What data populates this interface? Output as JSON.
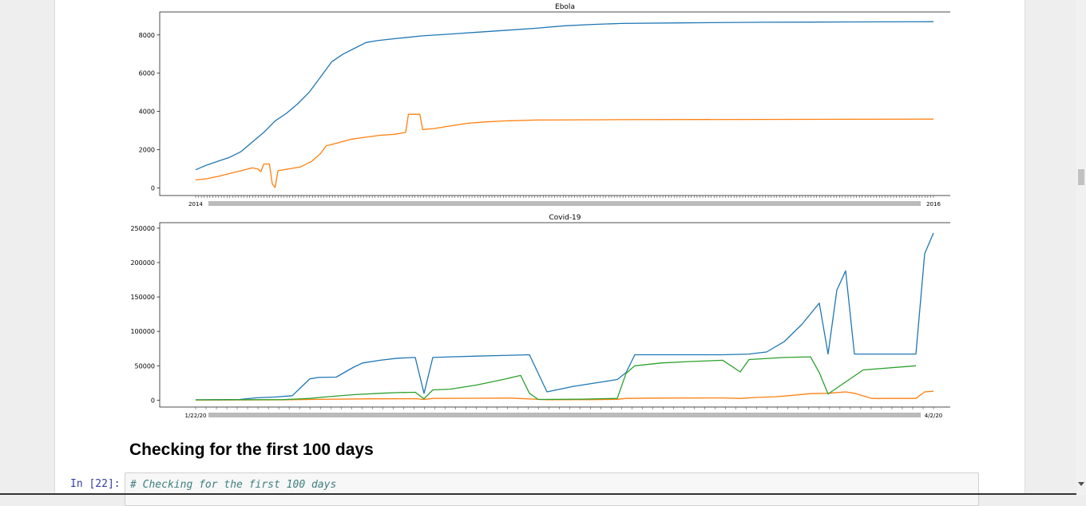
{
  "heading": "Checking for the first 100 days",
  "cell": {
    "prompt": "In [22]:",
    "code": "# Checking for the first 100 days"
  },
  "colors": {
    "series1": "#1f77b4",
    "series2": "#ff7f0e",
    "series3": "#2ca02c"
  },
  "chart_data": [
    {
      "type": "line",
      "title": "Ebola",
      "xlabel": "",
      "ylabel": "",
      "ylim": [
        -400,
        9200
      ],
      "yticks": [
        0,
        2000,
        4000,
        6000,
        8000
      ],
      "xtick_labels": [
        "2014",
        "2016"
      ],
      "grid": false,
      "x_count": 260,
      "series": [
        {
          "points": [
            [
              0,
              950
            ],
            [
              4,
              1200
            ],
            [
              8,
              1400
            ],
            [
              12,
              1600
            ],
            [
              16,
              1900
            ],
            [
              20,
              2400
            ],
            [
              24,
              2900
            ],
            [
              28,
              3500
            ],
            [
              32,
              3900
            ],
            [
              36,
              4400
            ],
            [
              40,
              5000
            ],
            [
              44,
              5800
            ],
            [
              48,
              6600
            ],
            [
              52,
              7000
            ],
            [
              56,
              7300
            ],
            [
              60,
              7600
            ],
            [
              64,
              7700
            ],
            [
              70,
              7800
            ],
            [
              80,
              7950
            ],
            [
              90,
              8050
            ],
            [
              100,
              8150
            ],
            [
              110,
              8250
            ],
            [
              120,
              8350
            ],
            [
              130,
              8480
            ],
            [
              140,
              8550
            ],
            [
              150,
              8600
            ],
            [
              170,
              8630
            ],
            [
              200,
              8660
            ],
            [
              230,
              8680
            ],
            [
              260,
              8690
            ]
          ]
        },
        {
          "points": [
            [
              0,
              420
            ],
            [
              4,
              480
            ],
            [
              8,
              600
            ],
            [
              12,
              750
            ],
            [
              16,
              900
            ],
            [
              20,
              1050
            ],
            [
              22,
              980
            ],
            [
              23,
              850
            ],
            [
              24,
              1250
            ],
            [
              26,
              1250
            ],
            [
              27,
              200
            ],
            [
              28,
              20
            ],
            [
              29,
              900
            ],
            [
              33,
              1000
            ],
            [
              37,
              1100
            ],
            [
              41,
              1400
            ],
            [
              44,
              1800
            ],
            [
              46,
              2200
            ],
            [
              50,
              2350
            ],
            [
              55,
              2550
            ],
            [
              60,
              2650
            ],
            [
              65,
              2750
            ],
            [
              70,
              2800
            ],
            [
              74,
              2900
            ],
            [
              75,
              3850
            ],
            [
              79,
              3850
            ],
            [
              80,
              3050
            ],
            [
              84,
              3100
            ],
            [
              90,
              3250
            ],
            [
              96,
              3380
            ],
            [
              102,
              3450
            ],
            [
              108,
              3500
            ],
            [
              120,
              3550
            ],
            [
              150,
              3570
            ],
            [
              200,
              3580
            ],
            [
              260,
              3600
            ]
          ]
        }
      ]
    },
    {
      "type": "line",
      "title": "Covid-19",
      "xlabel": "",
      "ylabel": "",
      "ylim": [
        -10000,
        258000
      ],
      "yticks": [
        0,
        50000,
        100000,
        150000,
        200000,
        250000
      ],
      "xtick_labels": [
        "1/22/20",
        "4/2/20"
      ],
      "grid": false,
      "x_count": 72,
      "series": [
        {
          "points": [
            [
              0,
              500
            ],
            [
              2,
              700
            ],
            [
              5,
              1000
            ],
            [
              7,
              3500
            ],
            [
              9,
              4500
            ],
            [
              11,
              6500
            ],
            [
              13,
              31000
            ],
            [
              14,
              33000
            ],
            [
              16,
              33500
            ],
            [
              18,
              48000
            ],
            [
              19,
              54000
            ],
            [
              21,
              58000
            ],
            [
              23,
              61000
            ],
            [
              25,
              62000
            ],
            [
              26,
              10000
            ],
            [
              27,
              62000
            ],
            [
              29,
              63000
            ],
            [
              32,
              64000
            ],
            [
              35,
              65000
            ],
            [
              38,
              66000
            ],
            [
              40,
              12000
            ],
            [
              43,
              20000
            ],
            [
              46,
              26000
            ],
            [
              48,
              30000
            ],
            [
              49,
              40000
            ],
            [
              50,
              66000
            ],
            [
              55,
              66000
            ],
            [
              58,
              66000
            ],
            [
              60,
              66000
            ],
            [
              63,
              67000
            ],
            [
              65,
              70000
            ],
            [
              67,
              85000
            ],
            [
              69,
              110000
            ],
            [
              71,
              141000
            ],
            [
              72,
              67000
            ],
            [
              73,
              160000
            ],
            [
              74,
              188000
            ],
            [
              75,
              67000
            ],
            [
              80,
              67000
            ],
            [
              82,
              67000
            ],
            [
              83,
              213000
            ],
            [
              84,
              243000
            ]
          ]
        },
        {
          "points": [
            [
              0,
              200
            ],
            [
              10,
              400
            ],
            [
              13,
              1000
            ],
            [
              20,
              2000
            ],
            [
              25,
              2200
            ],
            [
              26,
              1000
            ],
            [
              27,
              2500
            ],
            [
              32,
              2800
            ],
            [
              36,
              3000
            ],
            [
              40,
              500
            ],
            [
              45,
              800
            ],
            [
              48,
              1200
            ],
            [
              49,
              2500
            ],
            [
              52,
              3000
            ],
            [
              60,
              3200
            ],
            [
              62,
              2500
            ],
            [
              64,
              4000
            ],
            [
              66,
              5000
            ],
            [
              68,
              7000
            ],
            [
              70,
              9500
            ],
            [
              72,
              10000
            ],
            [
              74,
              12000
            ],
            [
              75,
              10000
            ],
            [
              77,
              2500
            ],
            [
              82,
              2500
            ],
            [
              83,
              12000
            ],
            [
              84,
              13000
            ]
          ]
        },
        {
          "points": [
            [
              0,
              400
            ],
            [
              10,
              800
            ],
            [
              13,
              2500
            ],
            [
              15,
              5000
            ],
            [
              18,
              8000
            ],
            [
              21,
              10000
            ],
            [
              23,
              11000
            ],
            [
              25,
              11500
            ],
            [
              26,
              2000
            ],
            [
              27,
              15000
            ],
            [
              29,
              16000
            ],
            [
              32,
              22000
            ],
            [
              35,
              30000
            ],
            [
              37,
              36000
            ],
            [
              38,
              10000
            ],
            [
              39,
              1000
            ],
            [
              44,
              1500
            ],
            [
              48,
              2500
            ],
            [
              49,
              39000
            ],
            [
              50,
              50000
            ],
            [
              53,
              54000
            ],
            [
              56,
              56000
            ],
            [
              60,
              58000
            ],
            [
              62,
              41000
            ],
            [
              63,
              59000
            ],
            [
              67,
              62000
            ],
            [
              70,
              63000
            ],
            [
              71,
              40000
            ],
            [
              72,
              9000
            ],
            [
              76,
              44000
            ],
            [
              82,
              50000
            ]
          ]
        }
      ]
    }
  ]
}
